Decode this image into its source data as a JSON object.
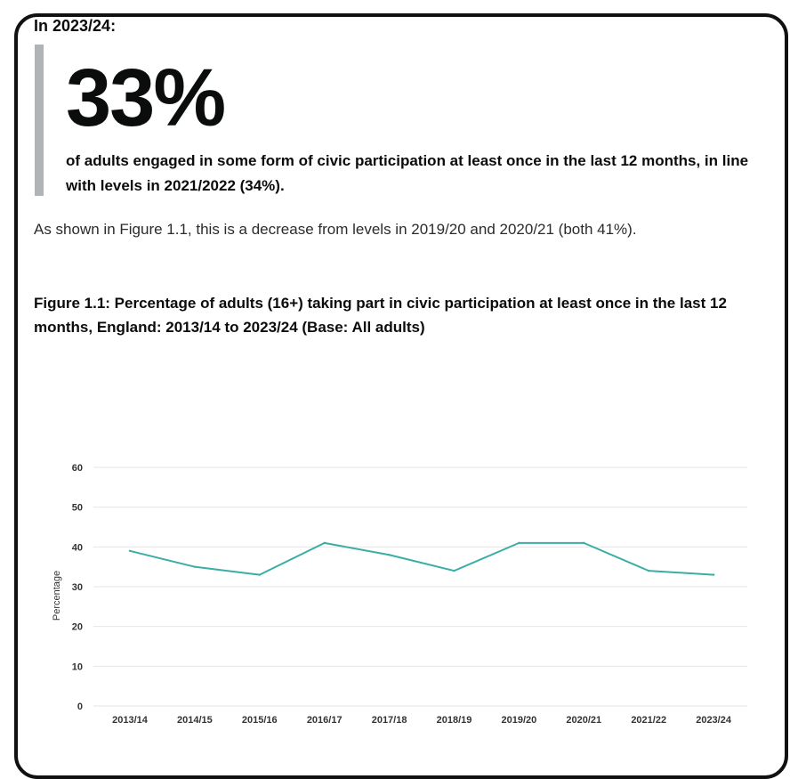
{
  "intro": "In 2023/24:",
  "callout": {
    "stat": "33%",
    "text": "of adults engaged in some form of civic participation at least once in the last 12 months, in line with levels in 2021/2022 (34%)."
  },
  "body": "As shown in Figure 1.1, this is a decrease from levels in 2019/20 and 2020/21 (both 41%).",
  "figure_title": "Figure 1.1: Percentage of adults (16+) taking part in civic participation at least once in the last 12 months, England: 2013/14 to 2023/24 (Base: All adults)",
  "colors": {
    "line": "#3aaea6",
    "gridline": "#e6e6e6",
    "callout_bar": "#b1b4b6"
  },
  "chart_data": {
    "type": "line",
    "title": "",
    "xlabel": "",
    "ylabel": "Percentage",
    "categories": [
      "2013/14",
      "2014/15",
      "2015/16",
      "2016/17",
      "2017/18",
      "2018/19",
      "2019/20",
      "2020/21",
      "2021/22",
      "2023/24"
    ],
    "series": [
      {
        "values": [
          39,
          35,
          33,
          41,
          38,
          34,
          41,
          41,
          34,
          33
        ]
      }
    ],
    "ylim": [
      0,
      60
    ],
    "yticks": [
      0,
      10,
      20,
      30,
      40,
      50,
      60
    ],
    "grid": true,
    "legend": "none"
  }
}
